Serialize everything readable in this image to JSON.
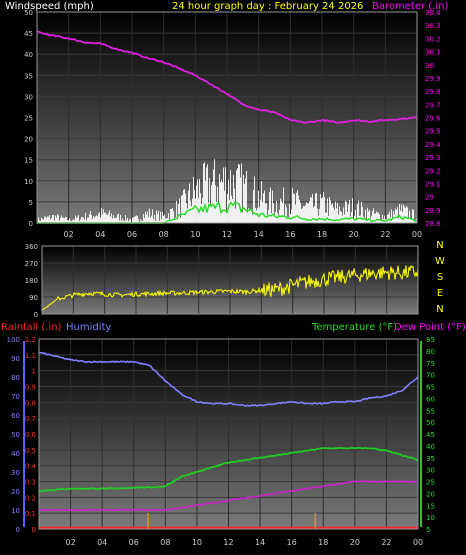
{
  "header": {
    "title": "24 hour graph day : February 24 2026",
    "title_color": "#ffff00"
  },
  "chart_data": [
    {
      "type": "line",
      "panel": "wind-barometer",
      "ylabel": "Windspeed (mph)",
      "ylabel_color": "#ffffff",
      "ylim": [
        0,
        50
      ],
      "yticks": [
        "0",
        "5",
        "10",
        "15",
        "20",
        "25",
        "30",
        "35",
        "40",
        "45",
        "50"
      ],
      "y2label": "Barometer (.in)",
      "y2label_color": "#ff00ff",
      "y2lim": [
        28.8,
        30.4
      ],
      "y2ticks": [
        "28.8",
        "28.9",
        "29",
        "29.1",
        "29.2",
        "29.3",
        "29.4",
        "29.5",
        "29.6",
        "29.7",
        "29.8",
        "29.9",
        "30",
        "30.1",
        "30.2",
        "30.3",
        "30.4"
      ],
      "xticks": [
        "02",
        "04",
        "06",
        "08",
        "10",
        "12",
        "14",
        "16",
        "18",
        "20",
        "22",
        "00"
      ],
      "x_hours": [
        0,
        1,
        2,
        3,
        4,
        5,
        6,
        7,
        8,
        9,
        10,
        11,
        12,
        13,
        14,
        15,
        16,
        17,
        18,
        19,
        20,
        21,
        22,
        23,
        24
      ],
      "series": [
        {
          "role": "barometer",
          "axis": "y2",
          "color": "#e020e0",
          "values": [
            30.25,
            30.22,
            30.2,
            30.17,
            30.16,
            30.12,
            30.09,
            30.05,
            30.02,
            29.97,
            29.92,
            29.85,
            29.78,
            29.7,
            29.66,
            29.64,
            29.58,
            29.56,
            29.58,
            29.56,
            29.58,
            29.57,
            29.58,
            29.59,
            29.6
          ]
        },
        {
          "role": "wind-gust",
          "axis": "y",
          "color": "#ffffff",
          "values": [
            1,
            2,
            1,
            2,
            3,
            2,
            1,
            3,
            2,
            5,
            10,
            12,
            13,
            11,
            8,
            6,
            7,
            5,
            6,
            4,
            5,
            3,
            2,
            4,
            2
          ]
        },
        {
          "role": "wind-average",
          "axis": "y",
          "color": "#22dd22",
          "values": [
            0,
            0,
            0,
            0,
            0,
            0,
            0,
            0,
            0,
            1.5,
            3,
            3.5,
            4,
            3.5,
            2,
            1.5,
            1.5,
            1,
            1,
            0.8,
            1,
            0.7,
            0.5,
            1.5,
            0.5
          ]
        }
      ]
    },
    {
      "type": "line",
      "panel": "wind-direction",
      "ylim": [
        0,
        360
      ],
      "yticks": [
        "0",
        "90",
        "180",
        "270",
        "360"
      ],
      "compass": [
        "N",
        "W",
        "S",
        "E",
        "N"
      ],
      "compass_color": "#ffff00",
      "x_hours": [
        0,
        1,
        2,
        3,
        4,
        5,
        6,
        7,
        8,
        9,
        10,
        11,
        12,
        13,
        14,
        15,
        16,
        17,
        18,
        19,
        20,
        21,
        22,
        23,
        24
      ],
      "series": [
        {
          "role": "wind-direction",
          "color": "#ffff00",
          "values": [
            20,
            80,
            100,
            110,
            105,
            100,
            105,
            108,
            110,
            112,
            115,
            118,
            120,
            118,
            125,
            130,
            150,
            170,
            185,
            195,
            205,
            215,
            220,
            218,
            222
          ]
        }
      ]
    },
    {
      "type": "line",
      "panel": "rain-humidity-temperature",
      "ylabel": "Rainfall (.in)",
      "ylabel_color": "#ff2020",
      "ylim": [
        0,
        1.2
      ],
      "yticks": [
        "0",
        "0.1",
        "0.2",
        "0.3",
        "0.4",
        "0.5",
        "0.6",
        "0.7",
        "0.8",
        "0.9",
        "1",
        "1.1",
        "1.2"
      ],
      "humidity_label": "Humidity",
      "humidity_label_color": "#8080ff",
      "humidity_lim": [
        0,
        100
      ],
      "humidity_ticks": [
        "0",
        "10",
        "20",
        "30",
        "40",
        "50",
        "60",
        "70",
        "80",
        "90",
        "100"
      ],
      "y2label": "Temperature (°F)",
      "y2label_color": "#22dd22",
      "dewpoint_label": "Dew Point (°F)",
      "dewpoint_label_color": "#ff00ff",
      "y2lim": [
        5,
        85
      ],
      "y2ticks": [
        "5",
        "10",
        "15",
        "20",
        "25",
        "30",
        "35",
        "40",
        "45",
        "50",
        "55",
        "60",
        "65",
        "70",
        "75",
        "80",
        "85"
      ],
      "xticks": [
        "02",
        "04",
        "06",
        "08",
        "10",
        "12",
        "14",
        "16",
        "18",
        "20",
        "22",
        "00"
      ],
      "x_hours": [
        0,
        1,
        2,
        3,
        4,
        5,
        6,
        7,
        8,
        9,
        10,
        11,
        12,
        13,
        14,
        15,
        16,
        17,
        18,
        19,
        20,
        21,
        22,
        23,
        24
      ],
      "series": [
        {
          "role": "humidity",
          "axis": "humidity",
          "color": "#8080ff",
          "values": [
            93,
            91,
            89,
            88,
            88,
            88,
            88,
            86,
            78,
            71,
            67,
            66,
            66,
            65,
            65,
            66,
            67,
            66,
            66,
            67,
            67,
            69,
            70,
            73,
            80
          ]
        },
        {
          "role": "temperature",
          "axis": "y2",
          "color": "#22cc22",
          "values": [
            21,
            21.5,
            22,
            22,
            22,
            22,
            22.5,
            22.5,
            23,
            27,
            29,
            31,
            33,
            34,
            35,
            36,
            37,
            38,
            39,
            39,
            39,
            39,
            38,
            36,
            34
          ]
        },
        {
          "role": "dew-point",
          "axis": "y2",
          "color": "#cc22cc",
          "values": [
            13,
            13,
            13,
            13,
            13,
            13,
            13,
            13,
            13,
            14,
            15,
            16,
            17,
            18,
            19,
            20,
            21,
            22,
            23,
            24,
            25,
            25,
            25,
            25,
            25
          ]
        },
        {
          "role": "rainfall",
          "axis": "y",
          "color": "#ff2020",
          "values": [
            0,
            0,
            0,
            0,
            0,
            0,
            0,
            0,
            0,
            0,
            0,
            0,
            0,
            0,
            0,
            0,
            0,
            0,
            0,
            0,
            0,
            0,
            0,
            0,
            0
          ]
        }
      ],
      "rain_rate_marks_hours": [
        6.9,
        17.5
      ],
      "rain_rate_color": "#cc9900"
    }
  ]
}
